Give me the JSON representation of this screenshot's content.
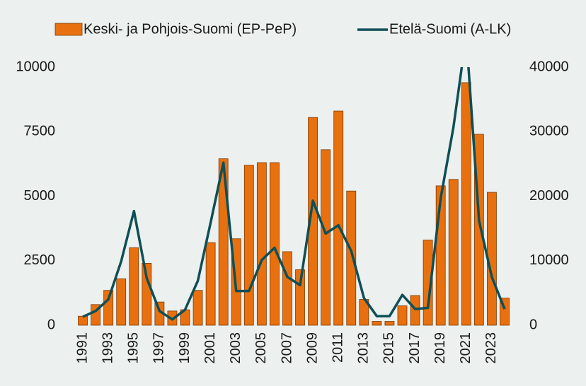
{
  "chart_data": {
    "type": "bar_line",
    "categories": [
      "1991",
      null,
      "1993",
      null,
      "1995",
      null,
      "1997",
      null,
      "1999",
      null,
      "2001",
      null,
      "2003",
      null,
      "2005",
      null,
      "2007",
      null,
      "2009",
      null,
      "2011",
      null,
      "2013",
      null,
      "2015",
      null,
      "2017",
      null,
      "2019",
      null,
      "2021",
      null,
      "2023",
      null
    ],
    "series": [
      {
        "name": "Keski- ja Pohjois-Suomi (EP-PeP)",
        "color": "#e8700e",
        "type": "bar",
        "values": [
          350,
          800,
          1350,
          1800,
          3000,
          2400,
          900,
          550,
          600,
          1350,
          3200,
          6450,
          3350,
          6200,
          6300,
          6300,
          2850,
          2150,
          8050,
          6800,
          8300,
          5200,
          1000,
          150,
          150,
          750,
          1150,
          3300,
          5400,
          5650,
          9400,
          7400,
          5150,
          1050
        ]
      },
      {
        "name": "Etelä-Suomi (A-LK)",
        "color": "#0e4f57",
        "type": "line",
        "axis": "y2",
        "values": [
          1300,
          2200,
          4000,
          9900,
          17700,
          7300,
          2200,
          900,
          2400,
          6900,
          15900,
          25200,
          5300,
          5300,
          10100,
          12000,
          7500,
          6200,
          19300,
          14200,
          15500,
          11500,
          4200,
          1400,
          1400,
          4700,
          2500,
          2700,
          19700,
          30700,
          45000,
          16200,
          7500,
          2500
        ]
      }
    ],
    "ylim": [
      0,
      10000
    ],
    "yticks": [
      0,
      2500,
      5000,
      7500,
      10000
    ],
    "y2lim": [
      0,
      40000
    ],
    "y2ticks": [
      0,
      10000,
      20000,
      30000,
      40000
    ],
    "legend": "top"
  }
}
